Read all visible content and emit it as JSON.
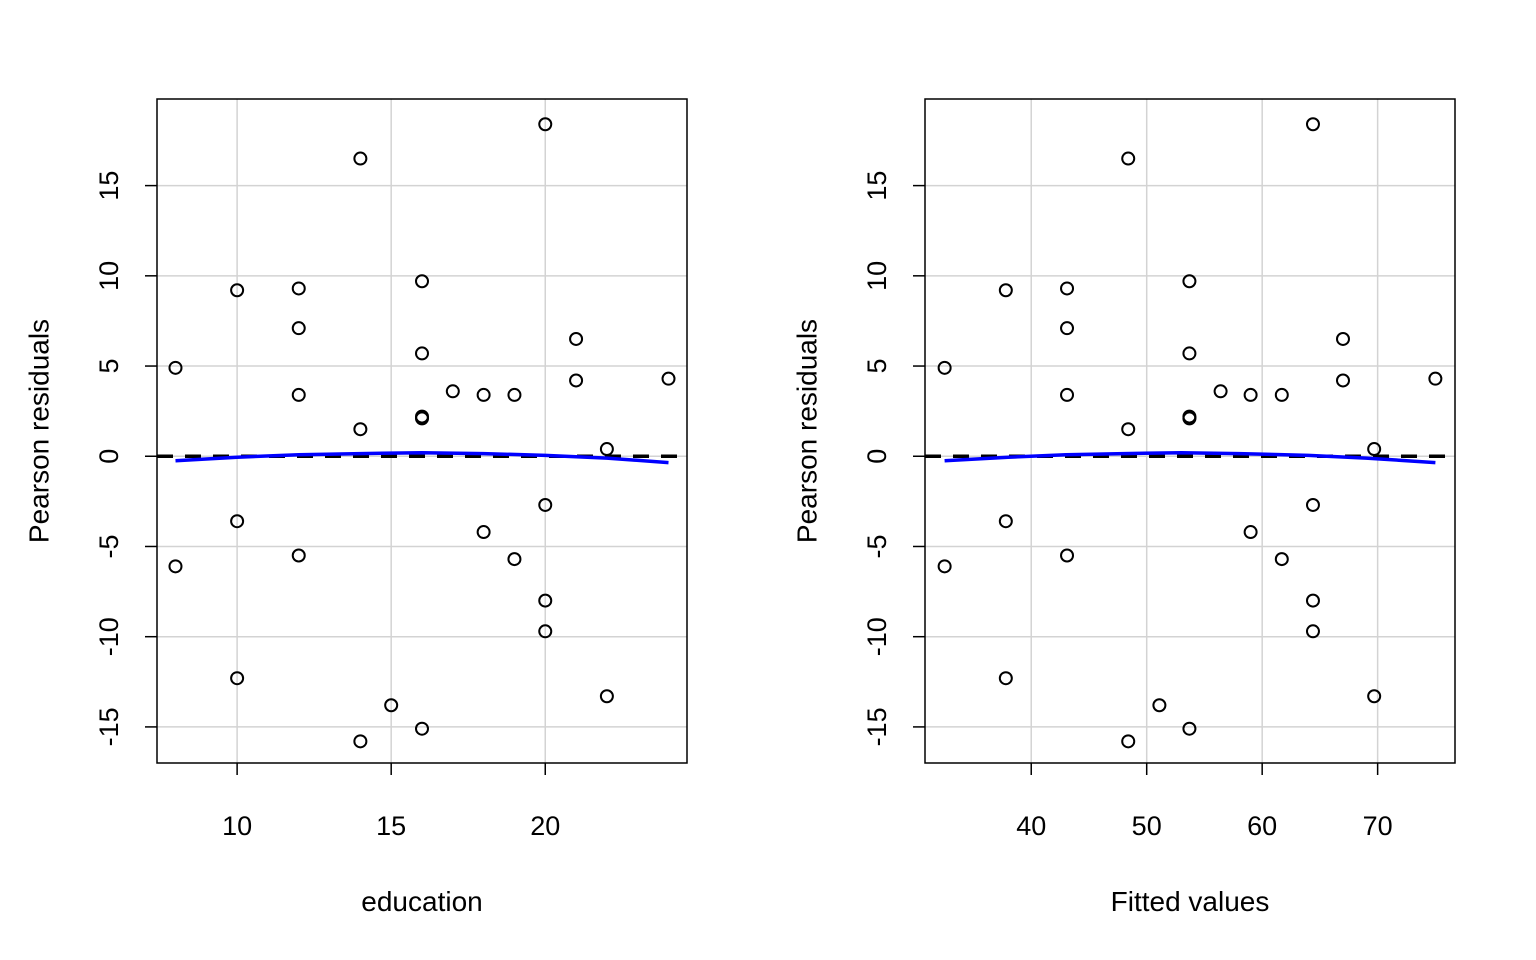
{
  "chart_data": [
    {
      "type": "scatter",
      "xlabel": "education",
      "ylabel": "Pearson residuals",
      "xlim": [
        7.4,
        24.6
      ],
      "ylim": [
        -17,
        19.8
      ],
      "xticks": [
        10,
        15,
        20
      ],
      "yticks": [
        -15,
        -10,
        -5,
        0,
        5,
        10,
        15
      ],
      "grid": true,
      "reference_line": 0,
      "smooth_curve": {
        "color": "#0000ff",
        "x": [
          8,
          10,
          12,
          14,
          16,
          18,
          20,
          22,
          24
        ],
        "y": [
          -0.25,
          -0.05,
          0.08,
          0.15,
          0.2,
          0.15,
          0.05,
          -0.1,
          -0.35
        ]
      },
      "points": [
        {
          "x": 8,
          "y": 4.9
        },
        {
          "x": 8,
          "y": -6.1
        },
        {
          "x": 10,
          "y": 9.2
        },
        {
          "x": 10,
          "y": -3.6
        },
        {
          "x": 10,
          "y": -12.3
        },
        {
          "x": 12,
          "y": 9.3
        },
        {
          "x": 12,
          "y": 7.1
        },
        {
          "x": 12,
          "y": 3.4
        },
        {
          "x": 12,
          "y": -5.5
        },
        {
          "x": 14,
          "y": 16.5
        },
        {
          "x": 14,
          "y": 1.5
        },
        {
          "x": 14,
          "y": -15.8
        },
        {
          "x": 15,
          "y": -13.8
        },
        {
          "x": 16,
          "y": 9.7
        },
        {
          "x": 16,
          "y": 5.7
        },
        {
          "x": 16,
          "y": 2.2
        },
        {
          "x": 16,
          "y": 2.1
        },
        {
          "x": 16,
          "y": -15.1
        },
        {
          "x": 17,
          "y": 3.6
        },
        {
          "x": 18,
          "y": 3.4
        },
        {
          "x": 18,
          "y": -4.2
        },
        {
          "x": 19,
          "y": 3.4
        },
        {
          "x": 19,
          "y": -5.7
        },
        {
          "x": 20,
          "y": 18.4
        },
        {
          "x": 20,
          "y": -2.7
        },
        {
          "x": 20,
          "y": -8.0
        },
        {
          "x": 20,
          "y": -9.7
        },
        {
          "x": 21,
          "y": 6.5
        },
        {
          "x": 21,
          "y": 4.2
        },
        {
          "x": 22,
          "y": 0.4
        },
        {
          "x": 22,
          "y": -13.3
        },
        {
          "x": 24,
          "y": 4.3
        }
      ]
    },
    {
      "type": "scatter",
      "xlabel": "Fitted values",
      "ylabel": "Pearson residuals",
      "xlim": [
        30.8,
        76.7
      ],
      "ylim": [
        -17,
        19.8
      ],
      "xticks": [
        40,
        50,
        60,
        70
      ],
      "yticks": [
        -15,
        -10,
        -5,
        0,
        5,
        10,
        15
      ],
      "grid": true,
      "reference_line": 0,
      "smooth_curve": {
        "color": "#0000ff",
        "x": [
          32.5,
          38,
          43,
          48,
          53,
          58,
          64,
          69,
          75
        ],
        "y": [
          -0.25,
          -0.05,
          0.08,
          0.15,
          0.2,
          0.15,
          0.05,
          -0.1,
          -0.35
        ]
      },
      "points": [
        {
          "x": 32.5,
          "y": 4.9
        },
        {
          "x": 32.5,
          "y": -6.1
        },
        {
          "x": 37.8,
          "y": 9.2
        },
        {
          "x": 37.8,
          "y": -3.6
        },
        {
          "x": 37.8,
          "y": -12.3
        },
        {
          "x": 43.1,
          "y": 9.3
        },
        {
          "x": 43.1,
          "y": 7.1
        },
        {
          "x": 43.1,
          "y": 3.4
        },
        {
          "x": 43.1,
          "y": -5.5
        },
        {
          "x": 48.4,
          "y": 16.5
        },
        {
          "x": 48.4,
          "y": 1.5
        },
        {
          "x": 48.4,
          "y": -15.8
        },
        {
          "x": 51.1,
          "y": -13.8
        },
        {
          "x": 53.7,
          "y": 9.7
        },
        {
          "x": 53.7,
          "y": 5.7
        },
        {
          "x": 53.7,
          "y": 2.2
        },
        {
          "x": 53.7,
          "y": 2.1
        },
        {
          "x": 53.7,
          "y": -15.1
        },
        {
          "x": 56.4,
          "y": 3.6
        },
        {
          "x": 59.0,
          "y": 3.4
        },
        {
          "x": 59.0,
          "y": -4.2
        },
        {
          "x": 61.7,
          "y": 3.4
        },
        {
          "x": 61.7,
          "y": -5.7
        },
        {
          "x": 64.4,
          "y": 18.4
        },
        {
          "x": 64.4,
          "y": -2.7
        },
        {
          "x": 64.4,
          "y": -8.0
        },
        {
          "x": 64.4,
          "y": -9.7
        },
        {
          "x": 67.0,
          "y": 6.5
        },
        {
          "x": 67.0,
          "y": 4.2
        },
        {
          "x": 69.7,
          "y": 0.4
        },
        {
          "x": 69.7,
          "y": -13.3
        },
        {
          "x": 75.0,
          "y": 4.3
        }
      ]
    }
  ]
}
